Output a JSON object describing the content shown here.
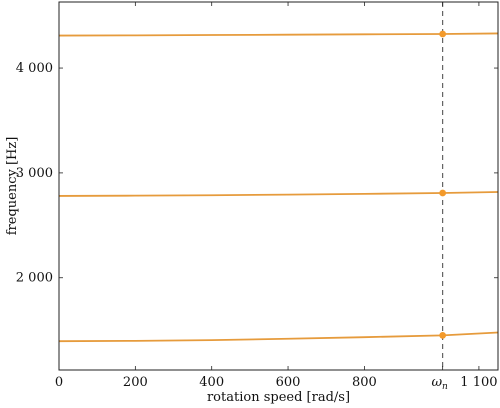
{
  "chart_data": {
    "type": "line",
    "xlabel": "rotation speed [rad/s]",
    "ylabel": "frequency [Hz]",
    "xlim": [
      0,
      1150
    ],
    "ylim": [
      1120,
      4630
    ],
    "x_ticks": [
      {
        "value": 0,
        "label": "0"
      },
      {
        "value": 200,
        "label": "200"
      },
      {
        "value": 400,
        "label": "400"
      },
      {
        "value": 600,
        "label": "600"
      },
      {
        "value": 800,
        "label": "800"
      },
      {
        "value": 1100,
        "label": "1 100"
      }
    ],
    "y_ticks": [
      {
        "value": 2000,
        "label": "2 000"
      },
      {
        "value": 3000,
        "label": "3 000"
      },
      {
        "value": 4000,
        "label": "4 000"
      }
    ],
    "reference_line": {
      "x": 1005,
      "label": "ω",
      "subscript": "n",
      "style": "dashed"
    },
    "series": [
      {
        "x": [
          0,
          200,
          400,
          600,
          800,
          1005,
          1150
        ],
        "y": [
          1395,
          1398,
          1405,
          1418,
          1433,
          1450,
          1478
        ]
      },
      {
        "x": [
          0,
          200,
          400,
          600,
          800,
          1005,
          1150
        ],
        "y": [
          2780,
          2783,
          2787,
          2793,
          2800,
          2808,
          2818
        ]
      },
      {
        "x": [
          0,
          200,
          400,
          600,
          800,
          1005,
          1150
        ],
        "y": [
          4310,
          4312,
          4315,
          4318,
          4322,
          4325,
          4330
        ]
      }
    ],
    "markers": [
      {
        "x": 1005,
        "y": 1450
      },
      {
        "x": 1005,
        "y": 2808
      },
      {
        "x": 1005,
        "y": 4325
      }
    ],
    "colors": {
      "line": "#e69b3c",
      "marker": "#f39a2b",
      "axis": "#222222",
      "reference": "#555555"
    }
  }
}
